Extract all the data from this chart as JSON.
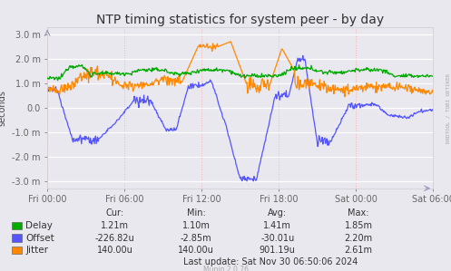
{
  "title": "NTP timing statistics for system peer - by day",
  "ylabel": "seconds",
  "background_color": "#e8e8ee",
  "plot_bg_color": "#e8e8ee",
  "grid_h_color": "#ffffff",
  "grid_v_color": "#ffb0b0",
  "ylim": [
    -3.3,
    3.3
  ],
  "yticks": [
    -3.0,
    -2.0,
    -1.0,
    0.0,
    1.0,
    2.0,
    3.0
  ],
  "ytick_labels": [
    "-3.0 m",
    "-2.0 m",
    "-1.0 m",
    "0.0",
    "1.0 m",
    "2.0 m",
    "3.0 m"
  ],
  "xtick_labels": [
    "Fri 00:00",
    "Fri 06:00",
    "Fri 12:00",
    "Fri 18:00",
    "Sat 00:00",
    "Sat 06:00"
  ],
  "delay_color": "#00aa00",
  "offset_color": "#5555ff",
  "jitter_color": "#ff8800",
  "legend_items": [
    "Delay",
    "Offset",
    "Jitter"
  ],
  "stats_header": [
    "Cur:",
    "Min:",
    "Avg:",
    "Max:"
  ],
  "stats_delay": [
    "1.21m",
    "1.10m",
    "1.41m",
    "1.85m"
  ],
  "stats_offset": [
    "-226.82u",
    "-2.85m",
    "-30.01u",
    "2.20m"
  ],
  "stats_jitter": [
    "140.00u",
    "140.00u",
    "901.19u",
    "2.61m"
  ],
  "last_update": "Last update: Sat Nov 30 06:50:06 2024",
  "munin_text": "Munin 2.0.76",
  "rrdtool_text": "RRDTOOL / TOBI OETIKER",
  "title_fontsize": 10,
  "axis_fontsize": 7,
  "legend_fontsize": 7.5,
  "stats_fontsize": 7
}
